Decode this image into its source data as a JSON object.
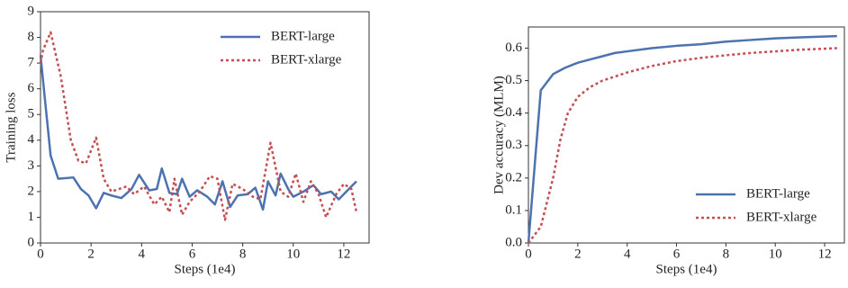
{
  "chart_data": [
    {
      "type": "line",
      "xlabel": "Steps (1e4)",
      "ylabel": "Training loss",
      "xlim": [
        0,
        13
      ],
      "ylim": [
        0,
        9
      ],
      "xticks": [
        0,
        2,
        4,
        6,
        8,
        10,
        12
      ],
      "yticks": [
        0,
        1,
        2,
        3,
        4,
        5,
        6,
        7,
        8,
        9
      ],
      "legend": "upper right",
      "series": [
        {
          "name": "BERT-large",
          "color": "#4c72b0",
          "linestyle": "solid",
          "x": [
            0,
            0.4,
            0.7,
            1.3,
            1.6,
            1.9,
            2.2,
            2.5,
            2.8,
            3.2,
            3.6,
            3.9,
            4.3,
            4.6,
            4.8,
            5.1,
            5.4,
            5.6,
            5.9,
            6.2,
            6.6,
            6.9,
            7.2,
            7.5,
            7.8,
            8.2,
            8.5,
            8.8,
            9.0,
            9.3,
            9.5,
            9.8,
            10.0,
            10.4,
            10.8,
            11.1,
            11.5,
            11.8,
            12.1,
            12.5
          ],
          "values": [
            7.3,
            3.4,
            2.5,
            2.55,
            2.1,
            1.85,
            1.35,
            1.95,
            1.85,
            1.75,
            2.1,
            2.65,
            2.05,
            2.1,
            2.9,
            1.95,
            1.9,
            2.5,
            1.8,
            2.05,
            1.8,
            1.5,
            2.4,
            1.4,
            1.85,
            1.9,
            2.15,
            1.3,
            2.4,
            1.85,
            2.7,
            2.1,
            1.8,
            2.0,
            2.25,
            1.9,
            2.0,
            1.7,
            2.0,
            2.4
          ]
        },
        {
          "name": "BERT-xlarge",
          "color": "#c44e52",
          "linestyle": "dotted",
          "x": [
            0,
            0.1,
            0.4,
            0.8,
            1.2,
            1.5,
            1.8,
            2.2,
            2.5,
            2.8,
            3.1,
            3.4,
            3.7,
            4.1,
            4.5,
            4.8,
            5.1,
            5.3,
            5.6,
            5.9,
            6.3,
            6.7,
            7.0,
            7.3,
            7.6,
            8.0,
            8.4,
            8.7,
            9.1,
            9.5,
            9.8,
            10.1,
            10.4,
            10.7,
            11.0,
            11.3,
            11.7,
            12.0,
            12.3,
            12.5
          ],
          "values": [
            7.0,
            7.5,
            8.2,
            6.5,
            4.0,
            3.2,
            3.1,
            4.1,
            2.5,
            2.0,
            2.1,
            2.2,
            1.9,
            2.2,
            1.5,
            1.8,
            1.2,
            2.5,
            1.1,
            1.6,
            2.0,
            2.6,
            2.5,
            0.9,
            2.3,
            2.1,
            1.8,
            1.7,
            3.9,
            2.0,
            1.8,
            2.7,
            1.6,
            2.4,
            1.9,
            1.0,
            1.9,
            2.3,
            2.1,
            1.2
          ]
        }
      ]
    },
    {
      "type": "line",
      "xlabel": "Steps (1e4)",
      "ylabel": "Dev accuracy (MLM)",
      "xlim": [
        0,
        12.8
      ],
      "ylim": [
        0,
        0.665
      ],
      "xticks": [
        0,
        2,
        4,
        6,
        8,
        10,
        12
      ],
      "yticks": [
        {
          "value": 0,
          "label": "0.0"
        },
        0.1,
        0.2,
        0.3,
        0.4,
        0.5,
        0.6
      ],
      "legend": "lower right",
      "series": [
        {
          "name": "BERT-large",
          "color": "#4c72b0",
          "linestyle": "solid",
          "x": [
            0,
            0.5,
            1,
            1.5,
            2,
            2.5,
            3,
            3.5,
            4,
            5,
            6,
            7,
            8,
            9,
            10,
            11,
            12.5
          ],
          "values": [
            0,
            0.47,
            0.52,
            0.54,
            0.555,
            0.565,
            0.575,
            0.585,
            0.59,
            0.6,
            0.607,
            0.612,
            0.62,
            0.625,
            0.63,
            0.633,
            0.637
          ]
        },
        {
          "name": "BERT-xlarge",
          "color": "#c44e52",
          "linestyle": "dotted",
          "x": [
            0,
            0.5,
            1,
            1.3,
            1.6,
            2,
            2.5,
            3,
            4,
            5,
            6,
            7,
            8,
            9,
            10,
            11,
            12.5
          ],
          "values": [
            0,
            0.05,
            0.2,
            0.32,
            0.4,
            0.45,
            0.48,
            0.5,
            0.525,
            0.545,
            0.56,
            0.57,
            0.578,
            0.585,
            0.59,
            0.595,
            0.6
          ]
        }
      ]
    }
  ]
}
